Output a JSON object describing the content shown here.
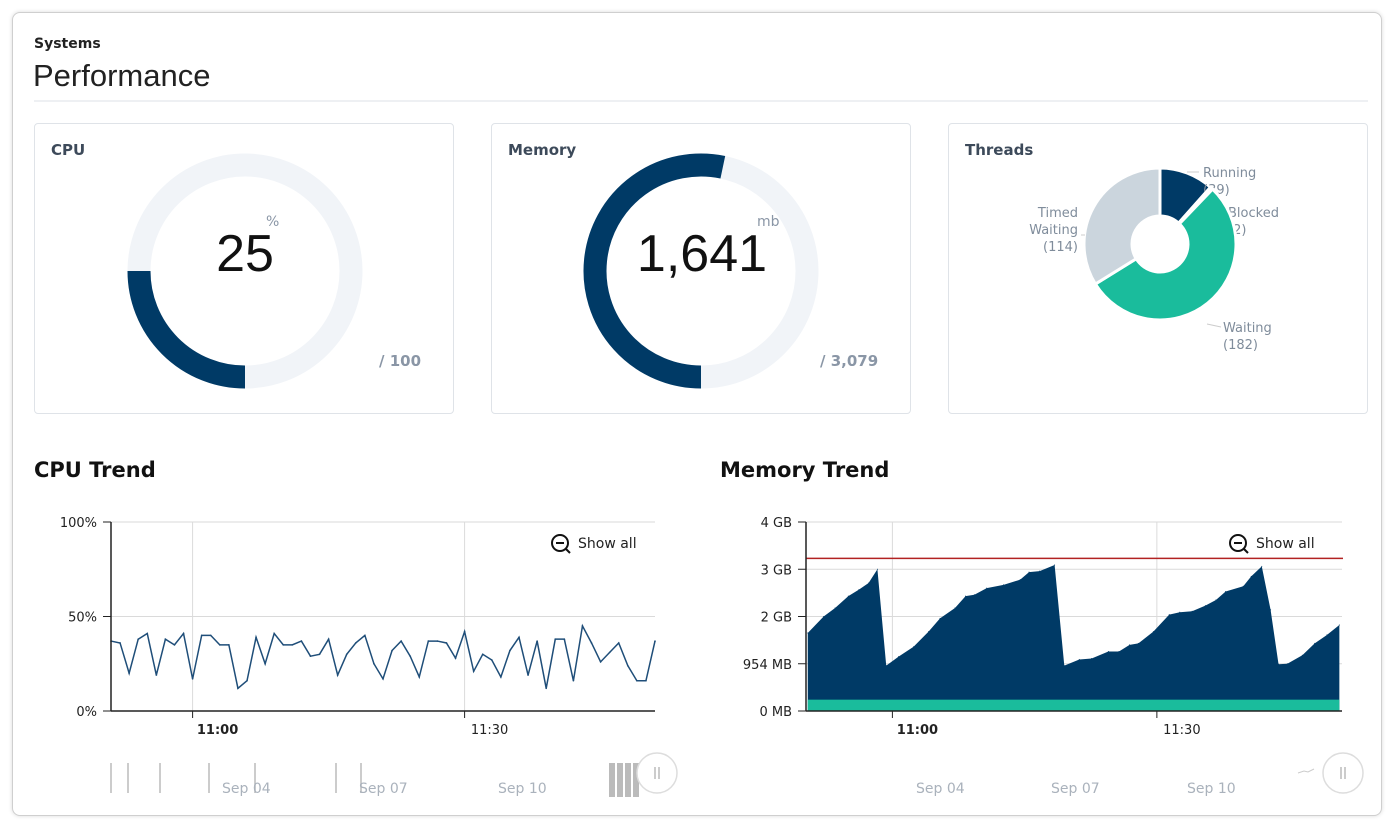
{
  "header": {
    "breadcrumb": "Systems",
    "title": "Performance"
  },
  "cpu_card": {
    "title": "CPU",
    "value": "25",
    "unit": "%",
    "max": "/ 100",
    "fraction": 0.25,
    "fill_color": "#003a66",
    "track_color": "#f1f4f8"
  },
  "memory_card": {
    "title": "Memory",
    "value": "1,641",
    "unit": "mb",
    "max": "/ 3,079",
    "fraction": 0.533,
    "fill_color": "#003a66",
    "track_color": "#f1f4f8"
  },
  "threads_card": {
    "title": "Threads",
    "chart_data": {
      "type": "pie",
      "slices": [
        {
          "label": "Running",
          "count": "(39)",
          "value": 39,
          "color": "#003a66"
        },
        {
          "label": "Blocked",
          "count": "(2)",
          "value": 2,
          "color": "#e57373"
        },
        {
          "label": "Waiting",
          "count": "(182)",
          "value": 182,
          "color": "#1abc9c"
        },
        {
          "label": "Timed Waiting",
          "count": "(114)",
          "value": 114,
          "color": "#cbd5dd"
        }
      ]
    }
  },
  "cpu_trend": {
    "title": "CPU Trend",
    "show_all": "Show all",
    "navigator_labels": [
      "Sep 04",
      "Sep 07",
      "Sep 10"
    ],
    "chart_data": {
      "type": "line",
      "xlim": [
        "10:51",
        "11:51"
      ],
      "ylim": [
        0,
        100
      ],
      "yticks": [
        {
          "v": 0,
          "label": "0%"
        },
        {
          "v": 50,
          "label": "50%"
        },
        {
          "v": 100,
          "label": "100%"
        }
      ],
      "xticks": [
        {
          "t": "11:00",
          "label": "11:00",
          "bold": true
        },
        {
          "t": "11:30",
          "label": "11:30",
          "bold": false
        }
      ],
      "color": "#1f4e79",
      "y": [
        37,
        36,
        20,
        38,
        41,
        19,
        38,
        35,
        41,
        17,
        40,
        40,
        35,
        35,
        12,
        16,
        39,
        25,
        41,
        35,
        35,
        37,
        29,
        30,
        38,
        19,
        30,
        36,
        40,
        25,
        17,
        32,
        37,
        29,
        18,
        37,
        37,
        36,
        28,
        42,
        21,
        30,
        27,
        18,
        32,
        39,
        19,
        37,
        12,
        38,
        38,
        16,
        45,
        36,
        26,
        31,
        36,
        24,
        16,
        16,
        37
      ]
    }
  },
  "memory_trend": {
    "title": "Memory Trend",
    "show_all": "Show all",
    "navigator_labels": [
      "Sep 04",
      "Sep 07",
      "Sep 10"
    ],
    "chart_data": {
      "type": "area",
      "xlim": [
        "10:50:36",
        "11:51:24"
      ],
      "ylim_gb": [
        0,
        4
      ],
      "yticks": [
        {
          "v": 0,
          "label": "0 MB"
        },
        {
          "v": 1,
          "label": "954 MB"
        },
        {
          "v": 2,
          "label": "2 GB"
        },
        {
          "v": 3,
          "label": "3 GB"
        },
        {
          "v": 4,
          "label": "4 GB"
        }
      ],
      "xticks": [
        {
          "t": "11:00:24",
          "label": "11:00",
          "bold": true
        },
        {
          "t": "11:30:24",
          "label": "11:30",
          "bold": false
        }
      ],
      "threshold_gb": 3.23,
      "threshold_color": "#b22222",
      "baseline_gb": 0.24,
      "baseline_color": "#1abc9c",
      "area_color": "#003a66",
      "points": [
        [
          "10:50:48",
          1.65
        ],
        [
          "10:52:36",
          2.0
        ],
        [
          "10:53:54",
          2.18
        ],
        [
          "10:55:24",
          2.43
        ],
        [
          "10:56:36",
          2.57
        ],
        [
          "10:57:42",
          2.71
        ],
        [
          "10:58:42",
          3.0
        ],
        [
          "10:59:42",
          0.96
        ],
        [
          "11:01:06",
          1.15
        ],
        [
          "11:02:48",
          1.36
        ],
        [
          "11:04:30",
          1.68
        ],
        [
          "11:05:48",
          1.96
        ],
        [
          "11:07:30",
          2.18
        ],
        [
          "11:08:42",
          2.43
        ],
        [
          "11:09:42",
          2.46
        ],
        [
          "11:11:06",
          2.6
        ],
        [
          "11:13:00",
          2.67
        ],
        [
          "11:14:54",
          2.78
        ],
        [
          "11:15:54",
          2.94
        ],
        [
          "11:17:06",
          2.96
        ],
        [
          "11:18:48",
          3.09
        ],
        [
          "11:19:54",
          0.96
        ],
        [
          "11:21:36",
          1.09
        ],
        [
          "11:23:00",
          1.11
        ],
        [
          "11:24:54",
          1.26
        ],
        [
          "11:26:06",
          1.26
        ],
        [
          "11:27:18",
          1.4
        ],
        [
          "11:28:18",
          1.43
        ],
        [
          "11:30:00",
          1.68
        ],
        [
          "11:31:48",
          2.04
        ],
        [
          "11:33:00",
          2.09
        ],
        [
          "11:34:24",
          2.11
        ],
        [
          "11:35:54",
          2.23
        ],
        [
          "11:37:06",
          2.35
        ],
        [
          "11:38:12",
          2.53
        ],
        [
          "11:40:12",
          2.64
        ],
        [
          "11:41:06",
          2.85
        ],
        [
          "11:42:18",
          3.06
        ],
        [
          "11:43:18",
          2.14
        ],
        [
          "11:44:12",
          0.99
        ],
        [
          "11:45:12",
          1.0
        ],
        [
          "11:46:54",
          1.18
        ],
        [
          "11:48:18",
          1.43
        ],
        [
          "11:49:42",
          1.61
        ],
        [
          "11:51:06",
          1.82
        ]
      ]
    }
  }
}
